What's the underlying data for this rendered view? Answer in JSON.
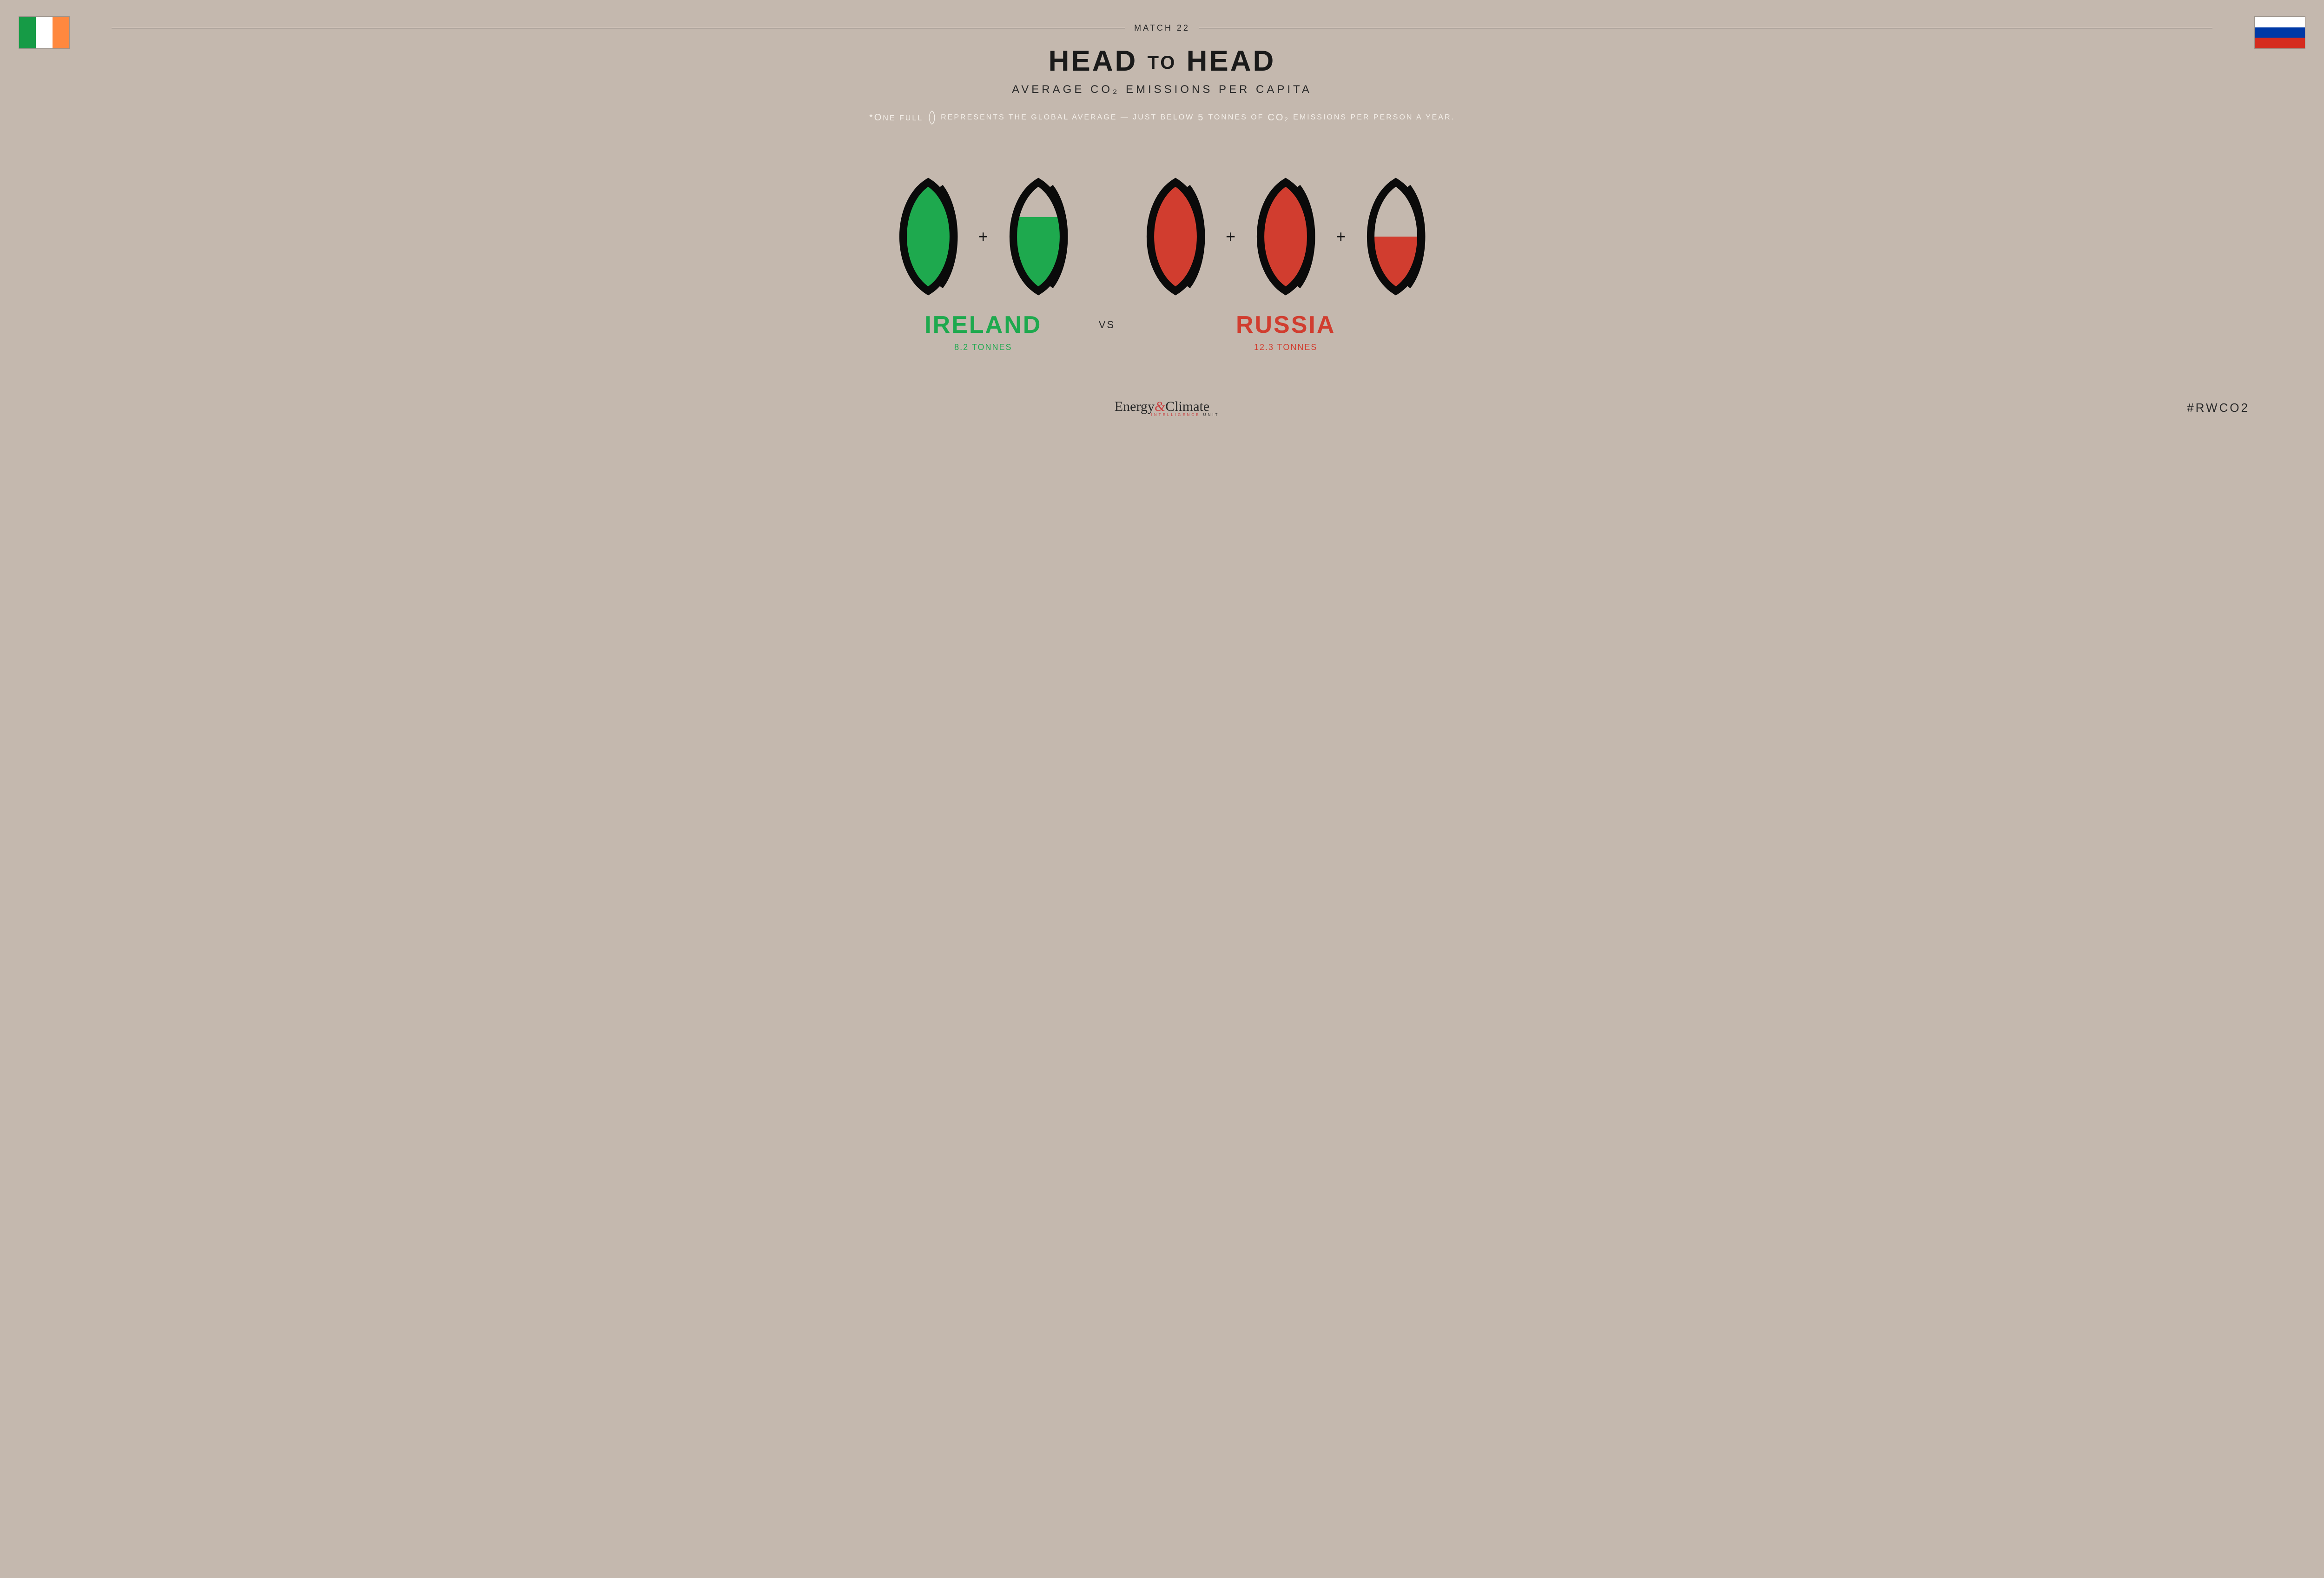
{
  "colors": {
    "background": "#c4b8ae",
    "text_dark": "#1a1a1a",
    "text_mid": "#2a2a2a",
    "text_light": "#f5f0ea",
    "ireland_green": "#1ea94e",
    "ireland_flag_green": "#169b46",
    "ireland_flag_orange": "#ff883e",
    "russia_red": "#d13d2f",
    "russia_flag_blue": "#0039a6",
    "russia_flag_red": "#d52b1e",
    "ball_outline": "#0a0a0a"
  },
  "header": {
    "match_label": "MATCH 22",
    "title_head": "HEAD",
    "title_to": "TO",
    "subtitle": "AVERAGE CO₂ EMISSIONS PER CAPITA",
    "legend_pre": "*O",
    "legend_pre2": "NE FULL",
    "legend_post1": "REPRESENTS THE GLOBAL AVERAGE — JUST BELOW",
    "legend_num": "5",
    "legend_post2": "TONNES OF",
    "legend_co2": "CO₂",
    "legend_post3": "EMISSIONS PER PERSON A YEAR."
  },
  "left": {
    "name": "IRELAND",
    "tonnage": "8.2 TONNES",
    "color": "#1ea94e",
    "balls": [
      {
        "fill_pct": 100
      },
      {
        "fill_pct": 68
      }
    ]
  },
  "vs": "VS",
  "right": {
    "name": "RUSSIA",
    "tonnage": "12.3 TONNES",
    "color": "#d13d2f",
    "balls": [
      {
        "fill_pct": 100
      },
      {
        "fill_pct": 100
      },
      {
        "fill_pct": 50
      }
    ]
  },
  "footer": {
    "logo_a": "Energy",
    "logo_amp": "&",
    "logo_b": "Climate",
    "logo_sub_a": "INTELLIGENCE",
    "logo_sub_b": "UNIT",
    "hashtag": "#RWCO2"
  }
}
